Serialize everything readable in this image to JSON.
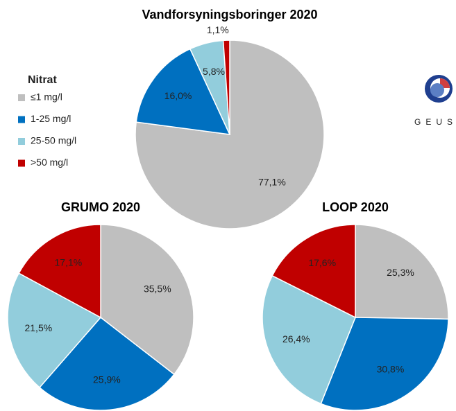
{
  "chart_data": [
    {
      "type": "pie",
      "title": "Vandforsyningsboringer 2020",
      "legend_title": "Nitrat",
      "categories": [
        "≤1 mg/l",
        "1-25 mg/l",
        "25-50 mg/l",
        ">50 mg/l"
      ],
      "values": [
        77.1,
        16.0,
        5.8,
        1.1
      ],
      "value_labels": [
        "77,1%",
        "16,0%",
        "5,8%",
        "1,1%"
      ],
      "colors": [
        "#bfbfbf",
        "#0070c0",
        "#92cddc",
        "#c00000"
      ]
    },
    {
      "type": "pie",
      "title": "GRUMO 2020",
      "categories": [
        "≤1 mg/l",
        "1-25 mg/l",
        "25-50 mg/l",
        ">50 mg/l"
      ],
      "values": [
        35.5,
        25.9,
        21.5,
        17.1
      ],
      "value_labels": [
        "35,5%",
        "25,9%",
        "21,5%",
        "17,1%"
      ],
      "colors": [
        "#bfbfbf",
        "#0070c0",
        "#92cddc",
        "#c00000"
      ]
    },
    {
      "type": "pie",
      "title": "LOOP 2020",
      "categories": [
        "≤1 mg/l",
        "1-25 mg/l",
        "25-50 mg/l",
        ">50 mg/l"
      ],
      "values": [
        25.3,
        30.8,
        26.4,
        17.6
      ],
      "value_labels": [
        "25,3%",
        "30,8%",
        "26,4%",
        "17,6%"
      ],
      "colors": [
        "#bfbfbf",
        "#0070c0",
        "#92cddc",
        "#c00000"
      ]
    }
  ],
  "logo": "GEUS"
}
